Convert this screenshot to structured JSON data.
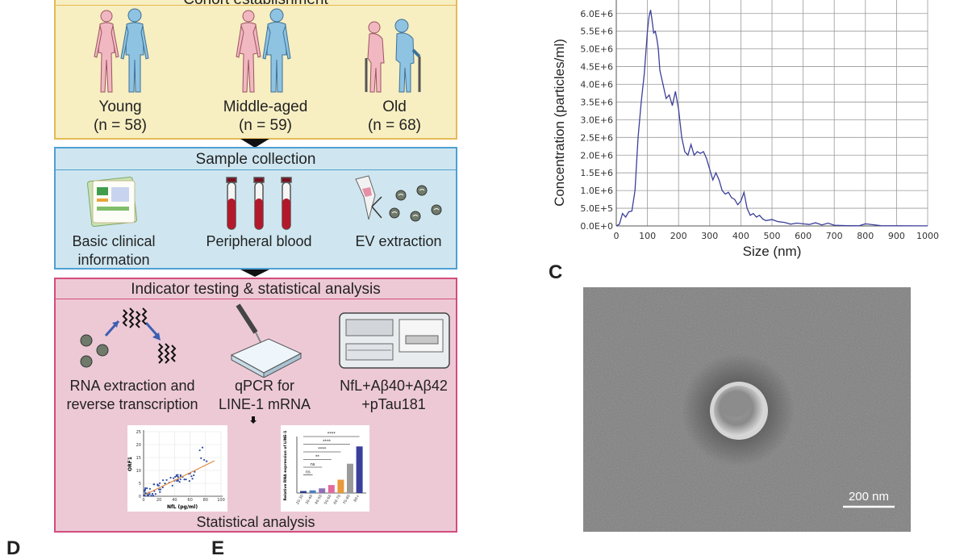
{
  "panel_a": {
    "title": "Cohort establishment",
    "groups": [
      {
        "name": "Young",
        "n": "(n = 58)"
      },
      {
        "name": "Middle-aged",
        "n": "(n = 59)"
      },
      {
        "name": "Old",
        "n": "(n = 68)"
      }
    ],
    "sample_collection": {
      "title": "Sample collection",
      "items": [
        "Basic clinical information",
        "Peripheral blood",
        "EV extraction"
      ],
      "clinical_l1": "Basic clinical",
      "clinical_l2": "information"
    },
    "indicator": {
      "title": "Indicator testing & statistical analysis",
      "rna_l1": "RNA extraction and",
      "rna_l2": "reverse transcription",
      "qpcr_l1": "qPCR for",
      "qpcr_l2": "LINE-1 mRNA",
      "assay_l1": "NfL+Aβ40+Aβ42",
      "assay_l2": "+pTau181",
      "footer": "Statistical analysis"
    },
    "mini_scatter": {
      "xlabel": "NfL (pg/ml)",
      "ylabel": "ORF1",
      "xticks": [
        "0",
        "20",
        "40",
        "60",
        "80",
        "100"
      ],
      "yticks": [
        "0",
        "5",
        "10",
        "15",
        "20",
        "25"
      ]
    },
    "mini_bar": {
      "ylabel": "Relative RNA expression of LINE-1",
      "categories": [
        "20-30",
        "30-40",
        "40-50",
        "50-60",
        "60-70",
        "70-80",
        "80+"
      ],
      "values": [
        0.3,
        0.4,
        0.7,
        1.2,
        2.0,
        4.4,
        7.0
      ],
      "colors": [
        "#2c3e8c",
        "#4a7fc0",
        "#8e6fb8",
        "#e06aa0",
        "#e89a3c",
        "#9a9a9a",
        "#3a3f9e"
      ],
      "sig": [
        "****",
        "****",
        "****",
        "**",
        "ns",
        "ns"
      ]
    }
  },
  "letters": {
    "c": "C",
    "d": "D",
    "e": "E"
  },
  "chart_data": {
    "type": "line",
    "title": "",
    "xlabel": "Size (nm)",
    "ylabel": "Concentration (particles/ml)",
    "xlim": [
      0,
      1000
    ],
    "ylim": [
      0,
      6200000
    ],
    "xticks": [
      "0",
      "100",
      "200",
      "300",
      "400",
      "500",
      "600",
      "700",
      "800",
      "900",
      "1000"
    ],
    "yticks": [
      "0.0E+0",
      "5.0E+5",
      "1.0E+6",
      "1.5E+6",
      "2.0E+6",
      "2.5E+6",
      "3.0E+6",
      "3.5E+6",
      "4.0E+6",
      "4.5E+6",
      "5.0E+6",
      "5.5E+6",
      "6.0E+6"
    ],
    "x": [
      0,
      10,
      20,
      30,
      40,
      50,
      60,
      70,
      80,
      90,
      100,
      105,
      110,
      115,
      120,
      125,
      130,
      135,
      140,
      150,
      160,
      170,
      180,
      190,
      200,
      210,
      220,
      230,
      240,
      250,
      260,
      270,
      280,
      290,
      300,
      310,
      320,
      330,
      340,
      350,
      360,
      370,
      380,
      390,
      400,
      410,
      420,
      430,
      440,
      450,
      460,
      470,
      480,
      500,
      520,
      540,
      560,
      580,
      600,
      620,
      640,
      660,
      680,
      700,
      740,
      780,
      800,
      850,
      900,
      1000
    ],
    "y": [
      0,
      50000,
      350000,
      250000,
      400000,
      420000,
      1000000,
      2500000,
      3500000,
      4300000,
      5500000,
      5900000,
      6100000,
      5800000,
      5450000,
      5500000,
      5300000,
      5000000,
      4400000,
      4000000,
      3600000,
      3700000,
      3400000,
      3800000,
      3300000,
      2500000,
      2100000,
      2000000,
      2300000,
      2000000,
      2100000,
      2050000,
      2100000,
      1900000,
      1600000,
      1300000,
      1500000,
      1300000,
      1000000,
      900000,
      950000,
      800000,
      750000,
      600000,
      700000,
      950000,
      500000,
      300000,
      350000,
      250000,
      300000,
      200000,
      150000,
      180000,
      120000,
      100000,
      50000,
      80000,
      60000,
      40000,
      90000,
      30000,
      80000,
      20000,
      10000,
      5000,
      60000,
      10000,
      5000,
      3000
    ]
  },
  "tem": {
    "scale_label": "200 nm"
  }
}
